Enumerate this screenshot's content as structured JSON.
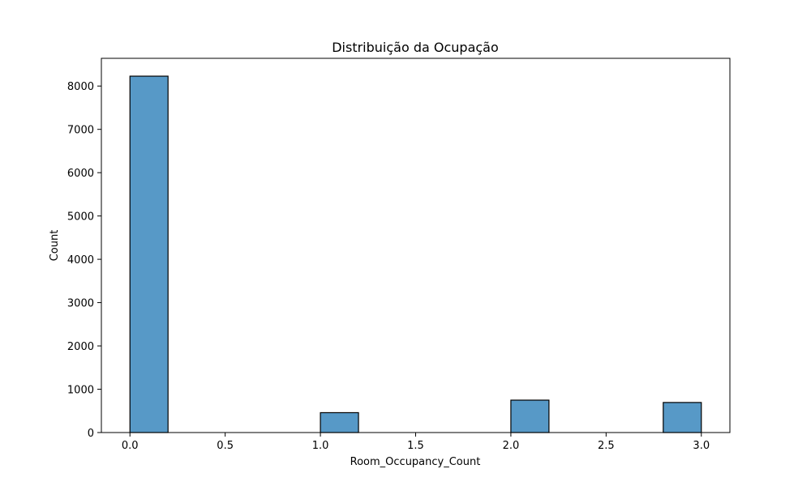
{
  "chart_data": {
    "type": "bar",
    "title": "Distribuição da Ocupação",
    "xlabel": "Room_Occupancy_Count",
    "ylabel": "Count",
    "xlim": [
      -0.15,
      3.15
    ],
    "ylim": [
      0,
      8640
    ],
    "xticks": [
      0.0,
      0.5,
      1.0,
      1.5,
      2.0,
      2.5,
      3.0
    ],
    "xtick_labels": [
      "0.0",
      "0.5",
      "1.0",
      "1.5",
      "2.0",
      "2.5",
      "3.0"
    ],
    "yticks": [
      0,
      1000,
      2000,
      3000,
      4000,
      5000,
      6000,
      7000,
      8000
    ],
    "ytick_labels": [
      "0",
      "1000",
      "2000",
      "3000",
      "4000",
      "5000",
      "6000",
      "7000",
      "8000"
    ],
    "bin_width": 0.2,
    "bins": [
      {
        "x_start": 0.0,
        "value": 8228
      },
      {
        "x_start": 1.0,
        "value": 459
      },
      {
        "x_start": 2.0,
        "value": 748
      },
      {
        "x_start": 2.8,
        "value": 694
      }
    ],
    "bar_color": "#5799c7",
    "edge_color": "#000000",
    "grid": false,
    "legend": "none"
  }
}
